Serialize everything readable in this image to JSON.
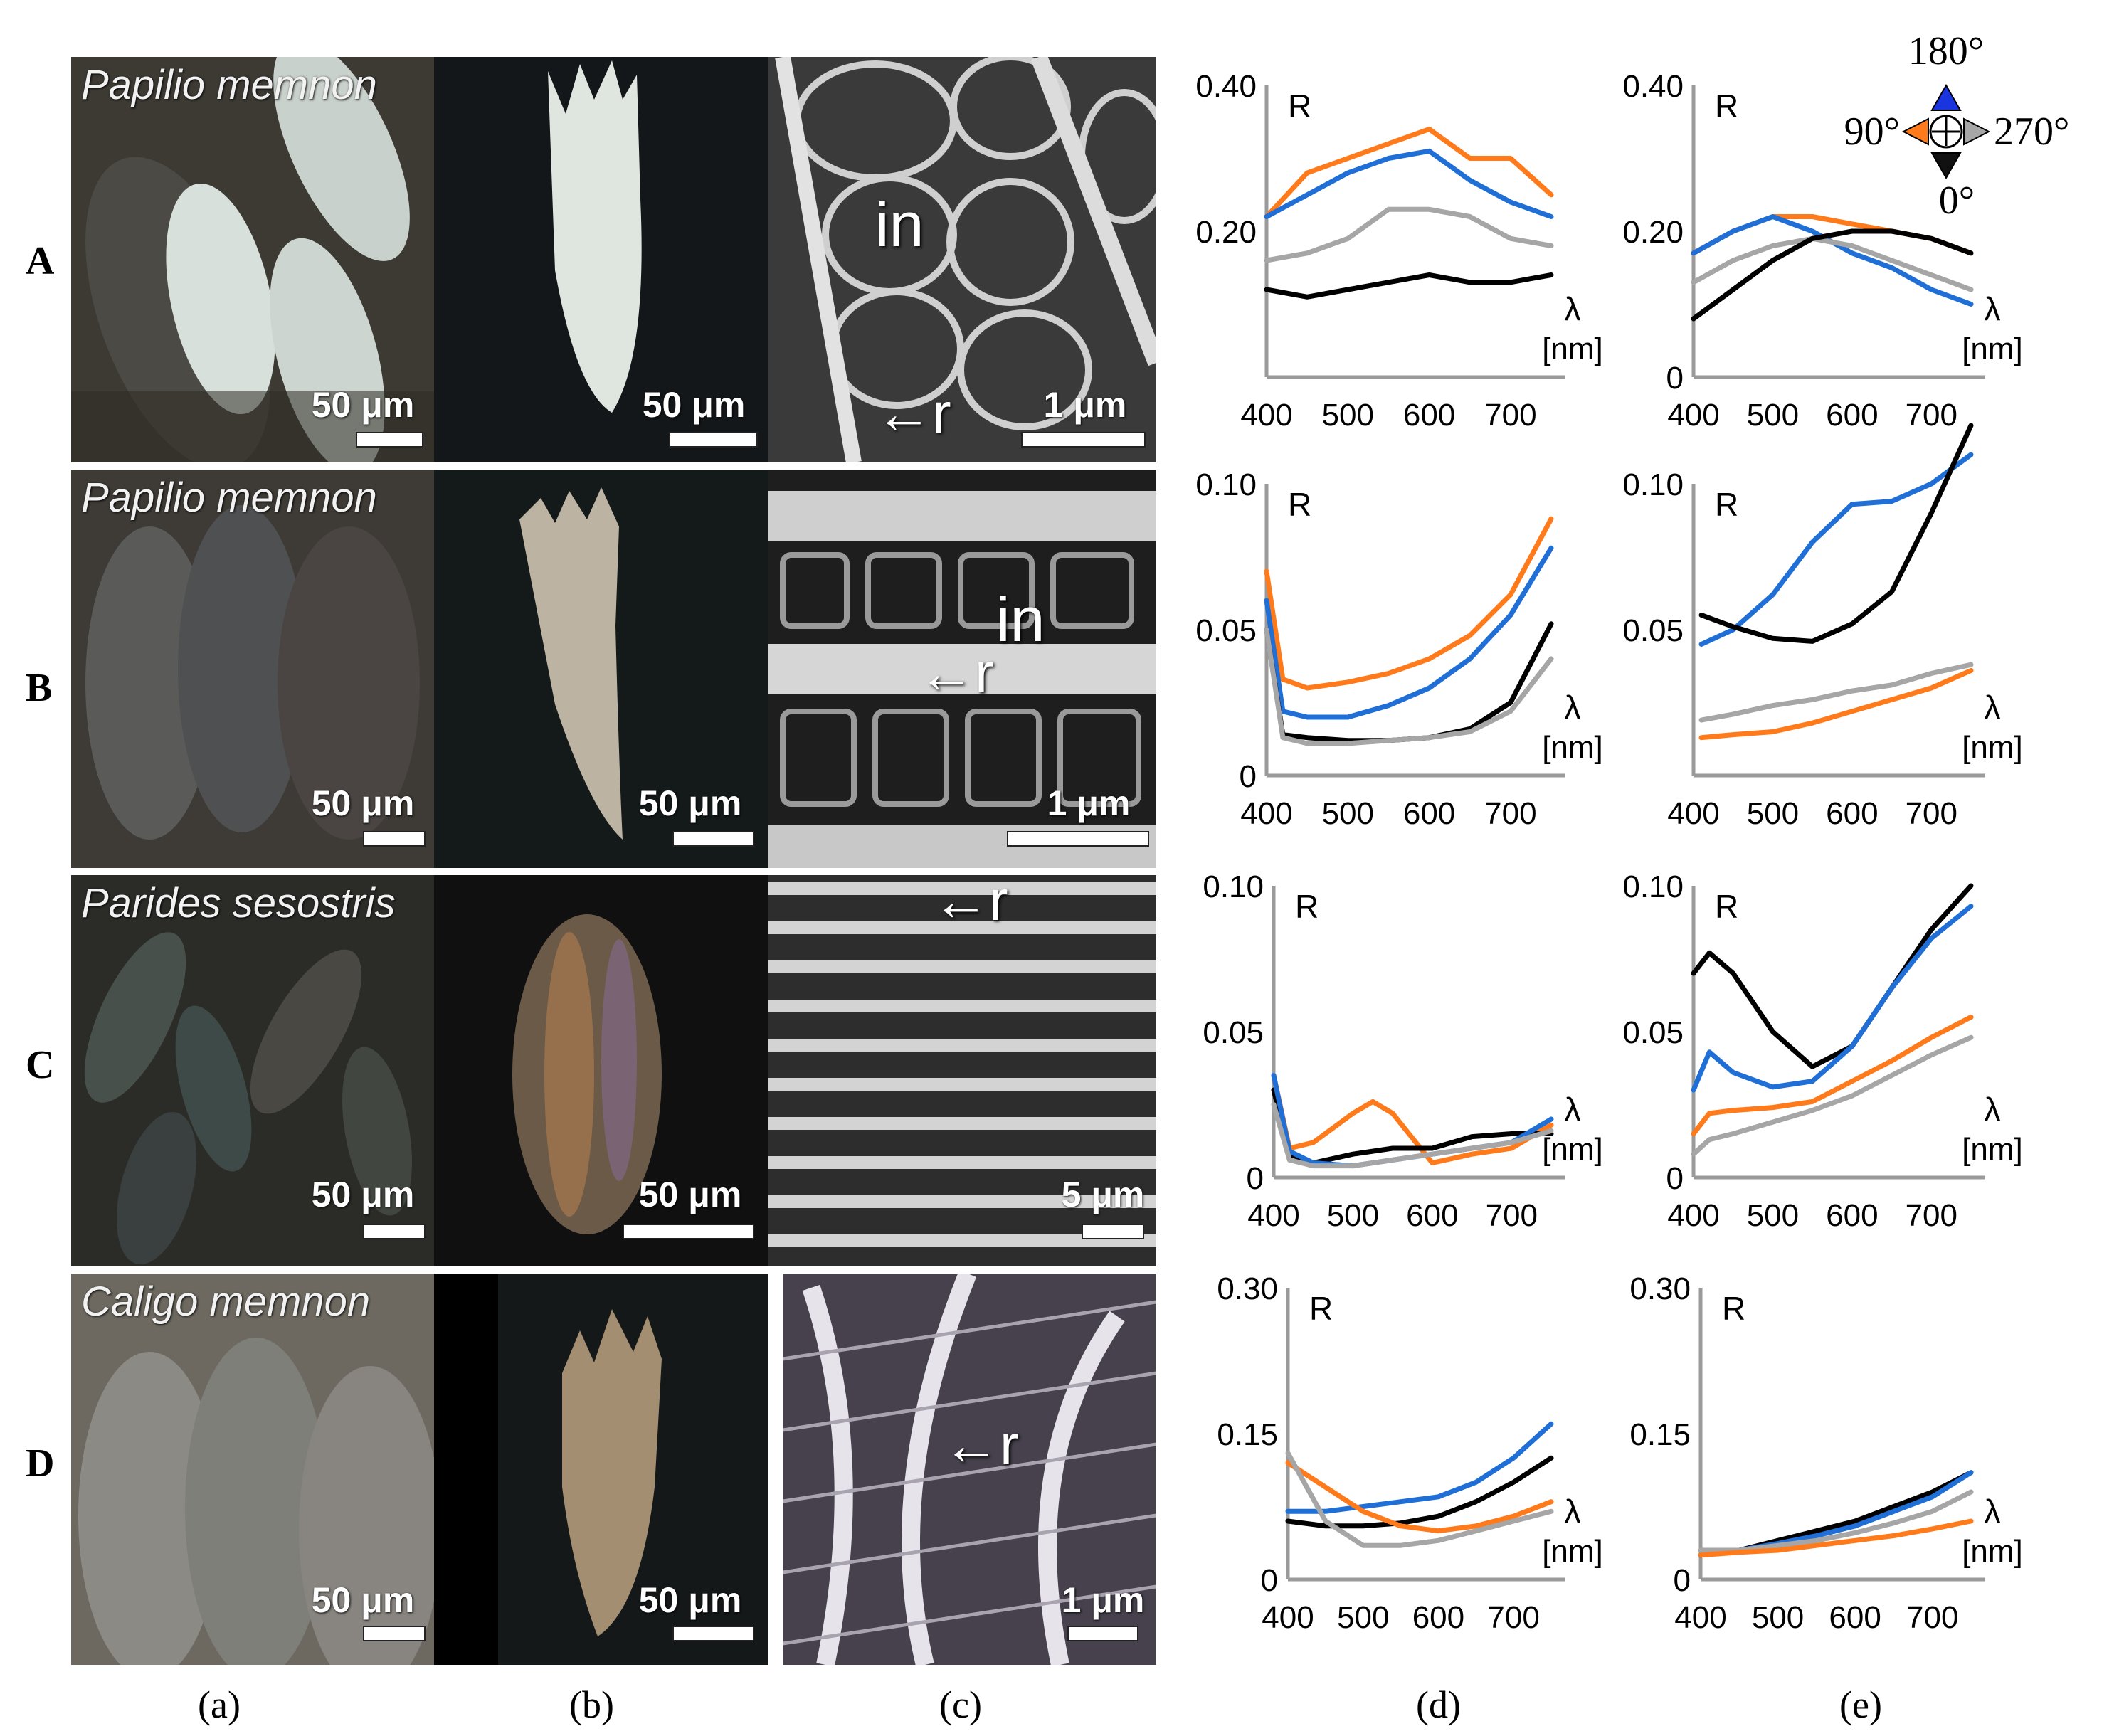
{
  "rows": [
    {
      "label": "A",
      "species": "Papilio memnon",
      "scale_a": "50 μm",
      "scale_b": "50 μm",
      "scale_c": "1 μm",
      "sem_labels": [
        "in",
        "r"
      ]
    },
    {
      "label": "B",
      "species": "Papilio memnon",
      "scale_a": "50 μm",
      "scale_b": "50 μm",
      "scale_c": "1 μm",
      "sem_labels": [
        "in",
        "r"
      ]
    },
    {
      "label": "C",
      "species": "Parides sesostris",
      "scale_a": "50 μm",
      "scale_b": "50 μm",
      "scale_c": "5 μm",
      "sem_labels": [
        "r"
      ]
    },
    {
      "label": "D",
      "species": "Caligo memnon",
      "scale_a": "50 μm",
      "scale_b": "50 μm",
      "scale_c": "1 μm",
      "sem_labels": [
        "r"
      ]
    }
  ],
  "columns": [
    "(a)",
    "(b)",
    "(c)",
    "(d)",
    "(e)"
  ],
  "legend": {
    "top": "180°",
    "left": "90°",
    "right": "270°",
    "bottom": "0°"
  },
  "colors": {
    "deg0": "#000000",
    "deg90": "#ff7a1a",
    "deg180": "#1f6fd6",
    "deg270": "#a6a6a6"
  },
  "chart_data": [
    {
      "id": "Ad",
      "type": "line",
      "ylabel": "R",
      "xlabel_symbol": "λ",
      "xlabel_unit": "[nm]",
      "xlim": [
        400,
        750
      ],
      "ylim": [
        0,
        0.4
      ],
      "yticks": [
        "0.40",
        "0.20"
      ],
      "xticks": [
        "400",
        "500",
        "600",
        "700"
      ],
      "x": [
        400,
        450,
        500,
        550,
        600,
        650,
        700,
        750
      ],
      "series": [
        {
          "name": "90°",
          "color": "#ff7a1a",
          "values": [
            0.22,
            0.28,
            0.3,
            0.32,
            0.34,
            0.3,
            0.3,
            0.25
          ]
        },
        {
          "name": "180°",
          "color": "#1f6fd6",
          "values": [
            0.22,
            0.25,
            0.28,
            0.3,
            0.31,
            0.27,
            0.24,
            0.22
          ]
        },
        {
          "name": "270°",
          "color": "#a6a6a6",
          "values": [
            0.16,
            0.17,
            0.19,
            0.23,
            0.23,
            0.22,
            0.19,
            0.18
          ]
        },
        {
          "name": "0°",
          "color": "#000000",
          "values": [
            0.12,
            0.11,
            0.12,
            0.13,
            0.14,
            0.13,
            0.13,
            0.14
          ]
        }
      ]
    },
    {
      "id": "Ae",
      "type": "line",
      "ylabel": "R",
      "xlabel_symbol": "λ",
      "xlabel_unit": "[nm]",
      "xlim": [
        400,
        750
      ],
      "ylim": [
        0,
        0.4
      ],
      "yticks": [
        "0.40",
        "0.20",
        "0"
      ],
      "xticks": [
        "400",
        "500",
        "600",
        "700"
      ],
      "x": [
        400,
        450,
        500,
        550,
        600,
        650,
        700,
        750
      ],
      "series": [
        {
          "name": "90°",
          "color": "#ff7a1a",
          "values": [
            0.17,
            0.2,
            0.22,
            0.22,
            0.21,
            0.2,
            0.19,
            0.17
          ]
        },
        {
          "name": "180°",
          "color": "#1f6fd6",
          "values": [
            0.17,
            0.2,
            0.22,
            0.2,
            0.17,
            0.15,
            0.12,
            0.1
          ]
        },
        {
          "name": "270°",
          "color": "#a6a6a6",
          "values": [
            0.13,
            0.16,
            0.18,
            0.19,
            0.18,
            0.16,
            0.14,
            0.12
          ]
        },
        {
          "name": "0°",
          "color": "#000000",
          "values": [
            0.08,
            0.12,
            0.16,
            0.19,
            0.2,
            0.2,
            0.19,
            0.17
          ]
        }
      ]
    },
    {
      "id": "Bd",
      "type": "line",
      "ylabel": "R",
      "xlabel_symbol": "λ",
      "xlabel_unit": "[nm]",
      "xlim": [
        400,
        750
      ],
      "ylim": [
        0,
        0.1
      ],
      "yticks": [
        "0.10",
        "0.05",
        "0"
      ],
      "xticks": [
        "400",
        "500",
        "600",
        "700"
      ],
      "x": [
        400,
        420,
        450,
        500,
        550,
        600,
        650,
        700,
        750
      ],
      "series": [
        {
          "name": "90°",
          "color": "#ff7a1a",
          "values": [
            0.07,
            0.033,
            0.03,
            0.032,
            0.035,
            0.04,
            0.048,
            0.062,
            0.088
          ]
        },
        {
          "name": "180°",
          "color": "#1f6fd6",
          "values": [
            0.06,
            0.022,
            0.02,
            0.02,
            0.024,
            0.03,
            0.04,
            0.055,
            0.078
          ]
        },
        {
          "name": "0°",
          "color": "#000000",
          "values": [
            0.05,
            0.014,
            0.013,
            0.012,
            0.012,
            0.013,
            0.016,
            0.025,
            0.052
          ]
        },
        {
          "name": "270°",
          "color": "#a6a6a6",
          "values": [
            0.05,
            0.013,
            0.011,
            0.011,
            0.012,
            0.013,
            0.015,
            0.022,
            0.04
          ]
        }
      ]
    },
    {
      "id": "Be",
      "type": "line",
      "ylabel": "R",
      "xlabel_symbol": "λ",
      "xlabel_unit": "[nm]",
      "xlim": [
        400,
        750
      ],
      "ylim": [
        0,
        0.1
      ],
      "yticks": [
        "0.10",
        "0.05"
      ],
      "xticks": [
        "400",
        "500",
        "600",
        "700"
      ],
      "x": [
        410,
        450,
        500,
        550,
        600,
        650,
        700,
        750
      ],
      "series": [
        {
          "name": "180°",
          "color": "#1f6fd6",
          "values": [
            0.045,
            0.05,
            0.062,
            0.08,
            0.093,
            0.094,
            0.1,
            0.11
          ]
        },
        {
          "name": "0°",
          "color": "#000000",
          "values": [
            0.055,
            0.051,
            0.047,
            0.046,
            0.052,
            0.063,
            0.09,
            0.12
          ]
        },
        {
          "name": "270°",
          "color": "#a6a6a6",
          "values": [
            0.019,
            0.021,
            0.024,
            0.026,
            0.029,
            0.031,
            0.035,
            0.038
          ]
        },
        {
          "name": "90°",
          "color": "#ff7a1a",
          "values": [
            0.013,
            0.014,
            0.015,
            0.018,
            0.022,
            0.026,
            0.03,
            0.036
          ]
        }
      ]
    },
    {
      "id": "Cd",
      "type": "line",
      "ylabel": "R",
      "xlabel_symbol": "λ",
      "xlabel_unit": "[nm]",
      "xlim": [
        400,
        750
      ],
      "ylim": [
        0,
        0.1
      ],
      "yticks": [
        "0.10",
        "0.05",
        "0"
      ],
      "xticks": [
        "400",
        "500",
        "600",
        "700"
      ],
      "x": [
        400,
        420,
        450,
        500,
        525,
        550,
        600,
        650,
        700,
        750
      ],
      "series": [
        {
          "name": "90°",
          "color": "#ff7a1a",
          "values": [
            0.035,
            0.01,
            0.012,
            0.022,
            0.026,
            0.022,
            0.005,
            0.008,
            0.01,
            0.018
          ]
        },
        {
          "name": "0°",
          "color": "#000000",
          "values": [
            0.03,
            0.008,
            0.005,
            0.008,
            0.009,
            0.01,
            0.01,
            0.014,
            0.015,
            0.015
          ]
        },
        {
          "name": "180°",
          "color": "#1f6fd6",
          "values": [
            0.035,
            0.009,
            0.005,
            0.004,
            0.005,
            0.006,
            0.008,
            0.01,
            0.012,
            0.02
          ]
        },
        {
          "name": "270°",
          "color": "#a6a6a6",
          "values": [
            0.025,
            0.006,
            0.004,
            0.004,
            0.005,
            0.006,
            0.008,
            0.01,
            0.012,
            0.016
          ]
        }
      ]
    },
    {
      "id": "Ce",
      "type": "line",
      "ylabel": "R",
      "xlabel_symbol": "λ",
      "xlabel_unit": "[nm]",
      "xlim": [
        400,
        750
      ],
      "ylim": [
        0,
        0.1
      ],
      "yticks": [
        "0.10",
        "0.05",
        "0"
      ],
      "xticks": [
        "400",
        "500",
        "600",
        "700"
      ],
      "x": [
        400,
        420,
        450,
        500,
        550,
        600,
        650,
        700,
        750
      ],
      "series": [
        {
          "name": "0°",
          "color": "#000000",
          "values": [
            0.07,
            0.077,
            0.07,
            0.05,
            0.038,
            0.045,
            0.065,
            0.085,
            0.1
          ]
        },
        {
          "name": "180°",
          "color": "#1f6fd6",
          "values": [
            0.03,
            0.043,
            0.036,
            0.031,
            0.033,
            0.045,
            0.065,
            0.082,
            0.093
          ]
        },
        {
          "name": "90°",
          "color": "#ff7a1a",
          "values": [
            0.015,
            0.022,
            0.023,
            0.024,
            0.026,
            0.033,
            0.04,
            0.048,
            0.055
          ]
        },
        {
          "name": "270°",
          "color": "#a6a6a6",
          "values": [
            0.008,
            0.013,
            0.015,
            0.019,
            0.023,
            0.028,
            0.035,
            0.042,
            0.048
          ]
        }
      ]
    },
    {
      "id": "Dd",
      "type": "line",
      "ylabel": "R",
      "xlabel_symbol": "λ",
      "xlabel_unit": "[nm]",
      "xlim": [
        400,
        750
      ],
      "ylim": [
        0,
        0.3
      ],
      "yticks": [
        "0.30",
        "0.15",
        "0"
      ],
      "xticks": [
        "400",
        "500",
        "600",
        "700"
      ],
      "x": [
        400,
        450,
        500,
        550,
        600,
        650,
        700,
        750
      ],
      "series": [
        {
          "name": "180°",
          "color": "#1f6fd6",
          "values": [
            0.07,
            0.07,
            0.075,
            0.08,
            0.085,
            0.1,
            0.125,
            0.16
          ]
        },
        {
          "name": "0°",
          "color": "#000000",
          "values": [
            0.06,
            0.055,
            0.055,
            0.058,
            0.065,
            0.08,
            0.1,
            0.125
          ]
        },
        {
          "name": "90°",
          "color": "#ff7a1a",
          "values": [
            0.12,
            0.095,
            0.07,
            0.055,
            0.05,
            0.055,
            0.065,
            0.08
          ]
        },
        {
          "name": "270°",
          "color": "#a6a6a6",
          "values": [
            0.13,
            0.06,
            0.035,
            0.035,
            0.04,
            0.05,
            0.06,
            0.07
          ]
        }
      ]
    },
    {
      "id": "De",
      "type": "line",
      "ylabel": "R",
      "xlabel_symbol": "λ",
      "xlabel_unit": "[nm]",
      "xlim": [
        400,
        750
      ],
      "ylim": [
        0,
        0.3
      ],
      "yticks": [
        "0.30",
        "0.15",
        "0"
      ],
      "xticks": [
        "400",
        "500",
        "600",
        "700"
      ],
      "x": [
        400,
        450,
        500,
        550,
        600,
        650,
        700,
        750
      ],
      "series": [
        {
          "name": "0°",
          "color": "#000000",
          "values": [
            0.025,
            0.03,
            0.04,
            0.05,
            0.06,
            0.075,
            0.09,
            0.11
          ]
        },
        {
          "name": "180°",
          "color": "#1f6fd6",
          "values": [
            0.025,
            0.03,
            0.037,
            0.045,
            0.055,
            0.07,
            0.085,
            0.11
          ]
        },
        {
          "name": "270°",
          "color": "#a6a6a6",
          "values": [
            0.03,
            0.03,
            0.035,
            0.04,
            0.048,
            0.058,
            0.07,
            0.09
          ]
        },
        {
          "name": "90°",
          "color": "#ff7a1a",
          "values": [
            0.025,
            0.028,
            0.03,
            0.035,
            0.04,
            0.045,
            0.052,
            0.06
          ]
        }
      ]
    }
  ]
}
